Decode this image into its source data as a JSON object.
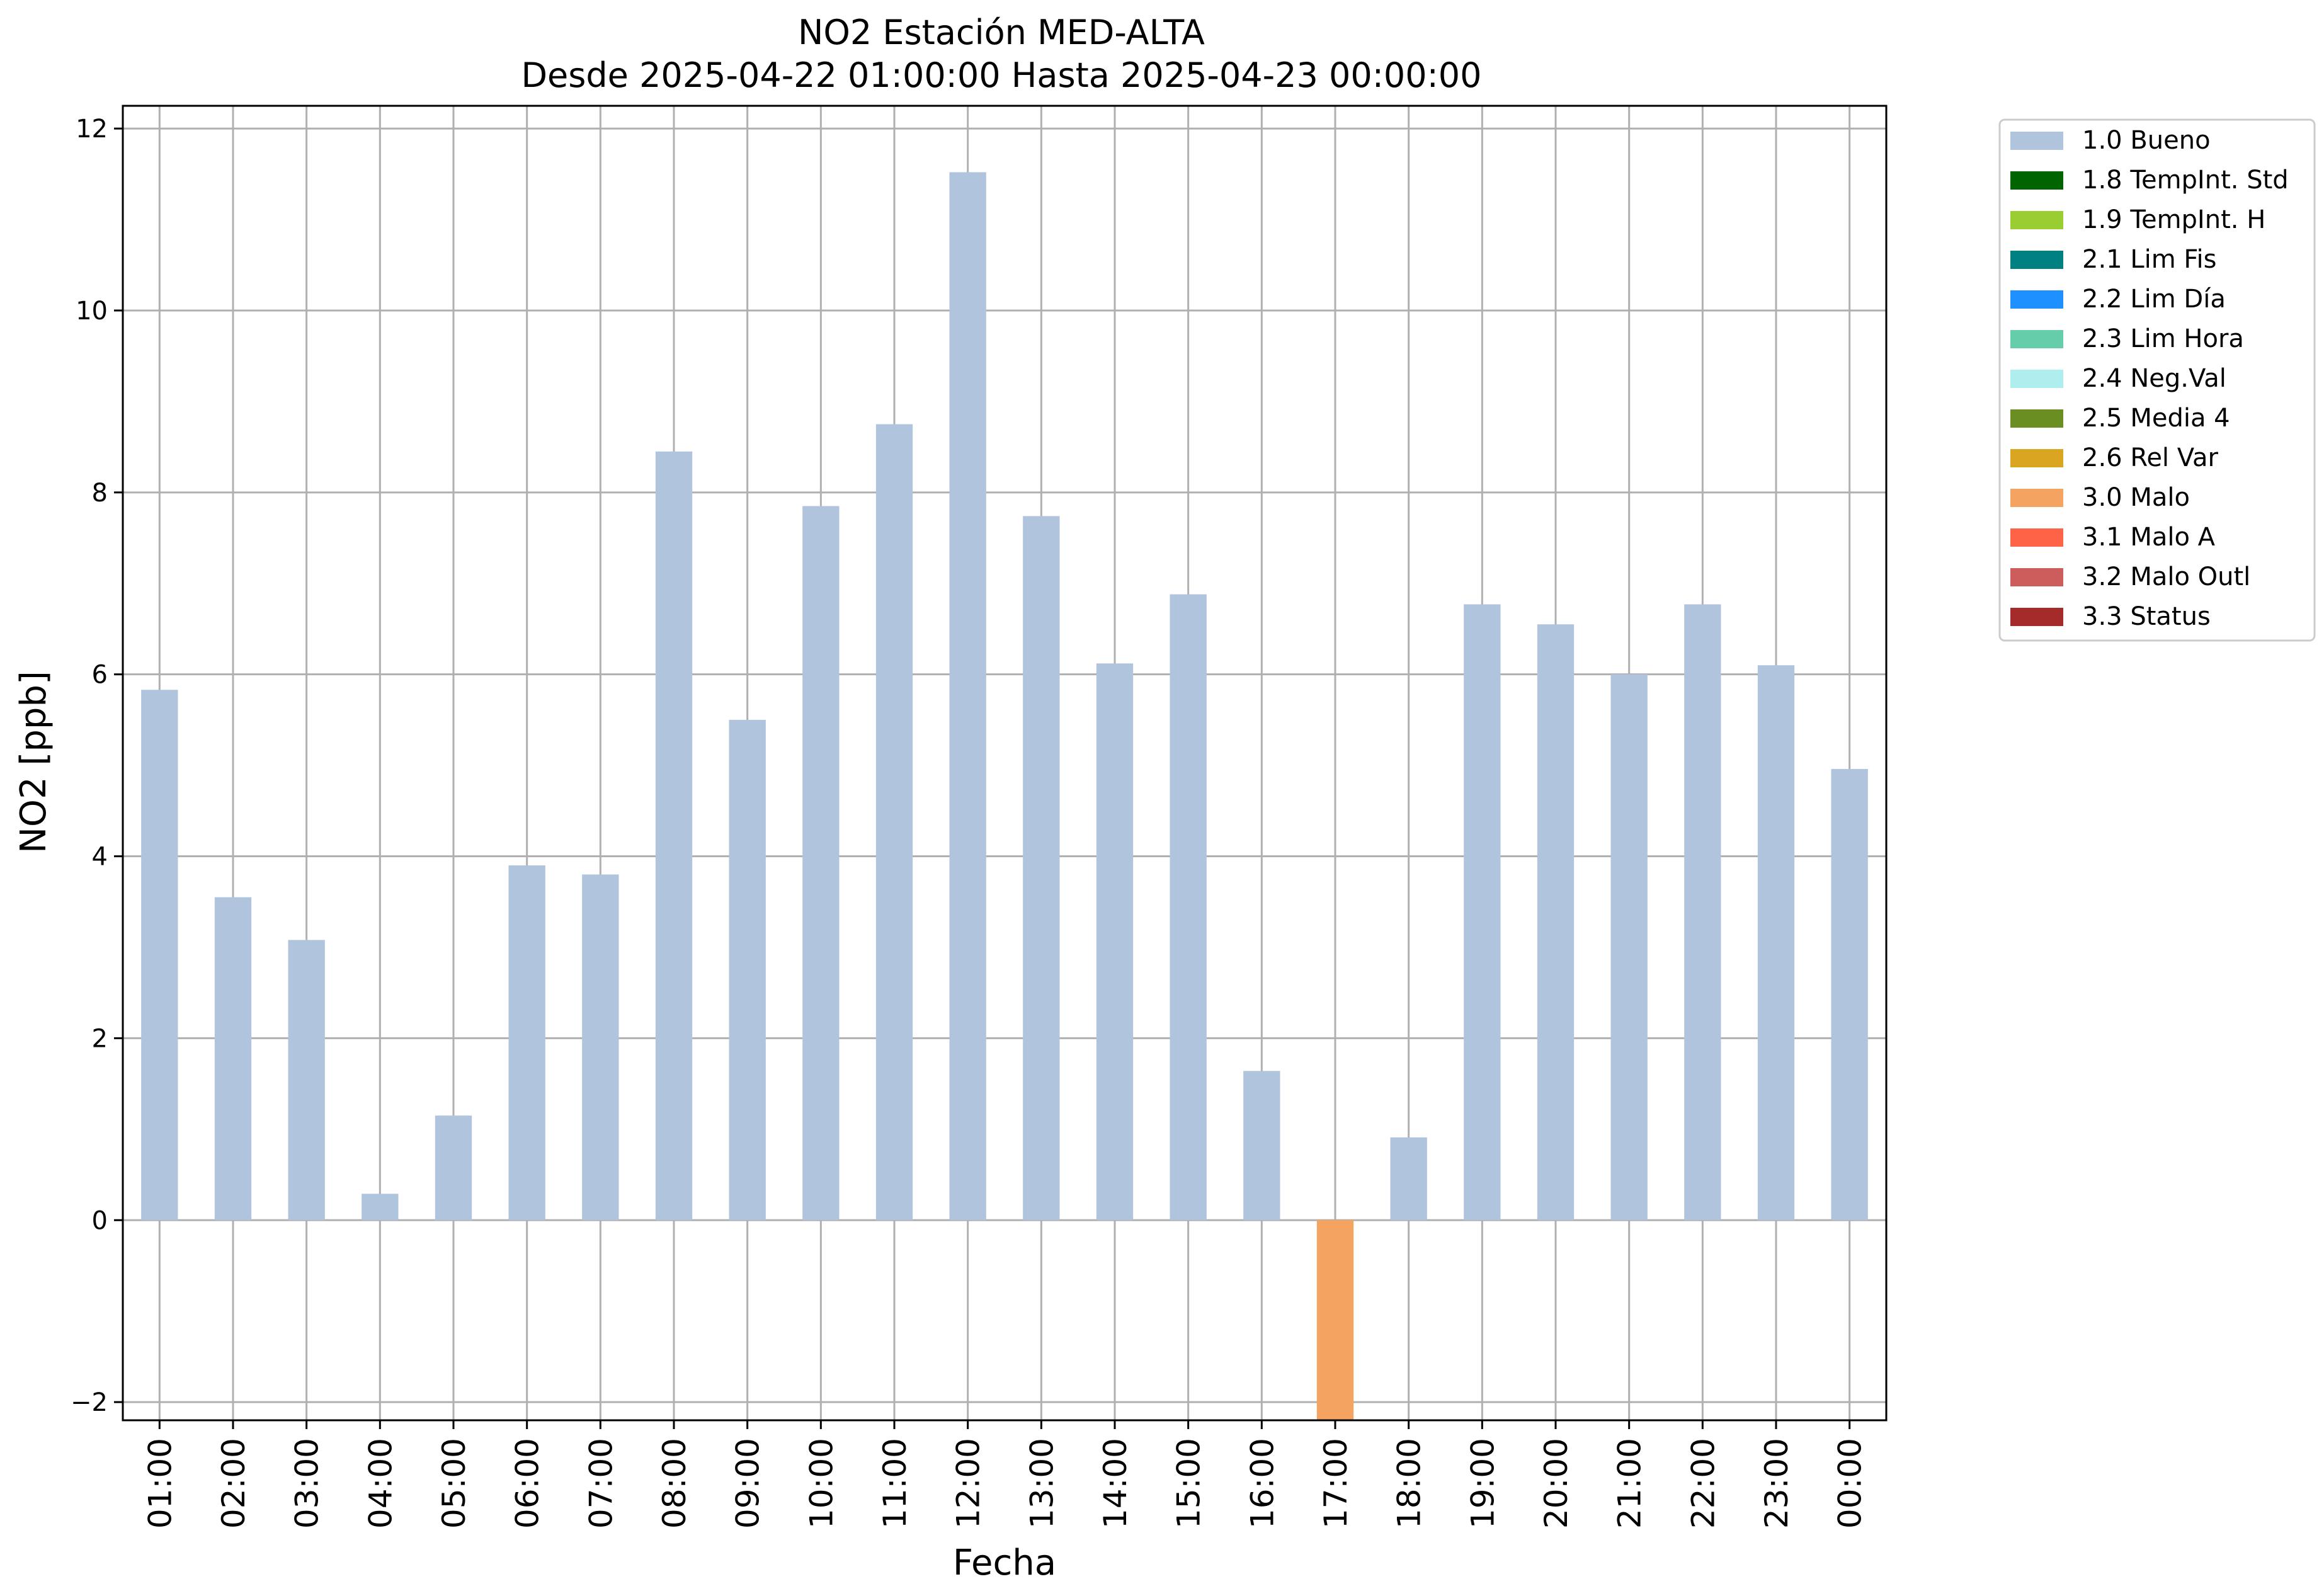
{
  "chart_data": {
    "type": "bar",
    "title": "NO2 Estación MED-ALTA",
    "subtitle": "Desde 2025-04-22 01:00:00 Hasta 2025-04-23 00:00:00",
    "xlabel": "Fecha",
    "ylabel": "NO2 [ppb]",
    "ylim": [
      -2.2,
      12.25
    ],
    "yticks": [
      -2,
      0,
      2,
      4,
      6,
      8,
      10,
      12
    ],
    "ytick_labels": [
      "−2",
      "0",
      "2",
      "4",
      "6",
      "8",
      "10",
      "12"
    ],
    "grid": true,
    "legend_position": "outside-right-top",
    "categories": [
      "01:00",
      "02:00",
      "03:00",
      "04:00",
      "05:00",
      "06:00",
      "07:00",
      "08:00",
      "09:00",
      "10:00",
      "11:00",
      "12:00",
      "13:00",
      "14:00",
      "15:00",
      "16:00",
      "17:00",
      "18:00",
      "19:00",
      "20:00",
      "21:00",
      "22:00",
      "23:00",
      "00:00"
    ],
    "values": [
      5.83,
      3.55,
      3.08,
      0.29,
      1.15,
      3.9,
      3.8,
      8.45,
      5.5,
      7.85,
      8.75,
      11.52,
      7.74,
      6.12,
      6.88,
      1.64,
      -2.2,
      0.91,
      6.77,
      6.55,
      6.0,
      6.77,
      6.1,
      4.96
    ],
    "flags": [
      "1.0 Bueno",
      "1.0 Bueno",
      "1.0 Bueno",
      "1.0 Bueno",
      "1.0 Bueno",
      "1.0 Bueno",
      "1.0 Bueno",
      "1.0 Bueno",
      "1.0 Bueno",
      "1.0 Bueno",
      "1.0 Bueno",
      "1.0 Bueno",
      "1.0 Bueno",
      "1.0 Bueno",
      "1.0 Bueno",
      "1.0 Bueno",
      "3.0 Malo",
      "1.0 Bueno",
      "1.0 Bueno",
      "1.0 Bueno",
      "1.0 Bueno",
      "1.0 Bueno",
      "1.0 Bueno",
      "1.0 Bueno"
    ],
    "legend": [
      {
        "label": "1.0 Bueno",
        "color": "#b0c4de"
      },
      {
        "label": "1.8 TempInt. Std",
        "color": "#006400"
      },
      {
        "label": "1.9 TempInt. H",
        "color": "#9acd32"
      },
      {
        "label": "2.1 Lim Fis",
        "color": "#008080"
      },
      {
        "label": "2.2 Lim Día",
        "color": "#1e90ff"
      },
      {
        "label": "2.3 Lim Hora",
        "color": "#66cdaa"
      },
      {
        "label": "2.4 Neg.Val",
        "color": "#afeeee"
      },
      {
        "label": "2.5 Media 4",
        "color": "#6b8e23"
      },
      {
        "label": "2.6 Rel Var",
        "color": "#daa520"
      },
      {
        "label": "3.0 Malo",
        "color": "#f4a460"
      },
      {
        "label": "3.1 Malo A",
        "color": "#ff6347"
      },
      {
        "label": "3.2 Malo Outl",
        "color": "#cd5c5c"
      },
      {
        "label": "3.3 Status",
        "color": "#a52a2a"
      }
    ]
  }
}
